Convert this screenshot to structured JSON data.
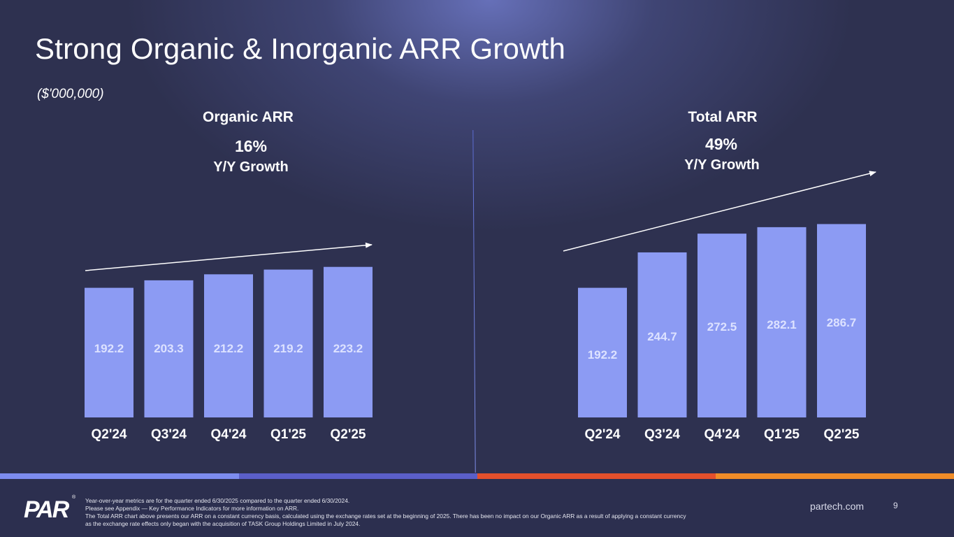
{
  "title": "Strong Organic & Inorganic ARR Growth",
  "units": "($'000,000)",
  "colors": {
    "bar": "#8c9bf3",
    "bar_label": "#dde2ff",
    "tick": "#ffffff",
    "arrow": "#ffffff",
    "strip": [
      "#7d8cee",
      "#5b5fc9",
      "#e4502c",
      "#f08c28"
    ]
  },
  "chart_data": [
    {
      "type": "bar",
      "title": "Organic ARR",
      "growth_value": "16%",
      "growth_label": "Y/Y Growth",
      "categories": [
        "Q2'24",
        "Q3'24",
        "Q4'24",
        "Q1'25",
        "Q2'25"
      ],
      "values": [
        192.2,
        203.3,
        212.2,
        219.2,
        223.2
      ],
      "value_labels": [
        "192.2",
        "203.3",
        "212.2",
        "219.2",
        "223.2"
      ],
      "xlabel": "",
      "ylabel": "",
      "grid": false,
      "legend": "none"
    },
    {
      "type": "bar",
      "title": "Total ARR",
      "growth_value": "49%",
      "growth_label": "Y/Y Growth",
      "categories": [
        "Q2'24",
        "Q3'24",
        "Q4'24",
        "Q1'25",
        "Q2'25"
      ],
      "values": [
        192.2,
        244.7,
        272.5,
        282.1,
        286.7
      ],
      "value_labels": [
        "192.2",
        "244.7",
        "272.5",
        "282.1",
        "286.7"
      ],
      "xlabel": "",
      "ylabel": "",
      "grid": false,
      "legend": "none"
    }
  ],
  "footer": {
    "logo": "PAR",
    "logo_mark": "®",
    "notes": [
      "Year-over-year metrics are for the quarter ended 6/30/2025 compared to the quarter ended 6/30/2024.",
      "Please see Appendix — Key Performance Indicators for more information on ARR.",
      "The Total ARR chart above presents our ARR on a constant currency basis, calculated using the exchange rates set at the beginning of 2025. There has been no impact on our Organic ARR as a result of applying a constant currency",
      "as the exchange rate effects only began with the acquisition of TASK Group Holdings Limited in July 2024."
    ],
    "website": "partech.com",
    "page_number": "9"
  }
}
